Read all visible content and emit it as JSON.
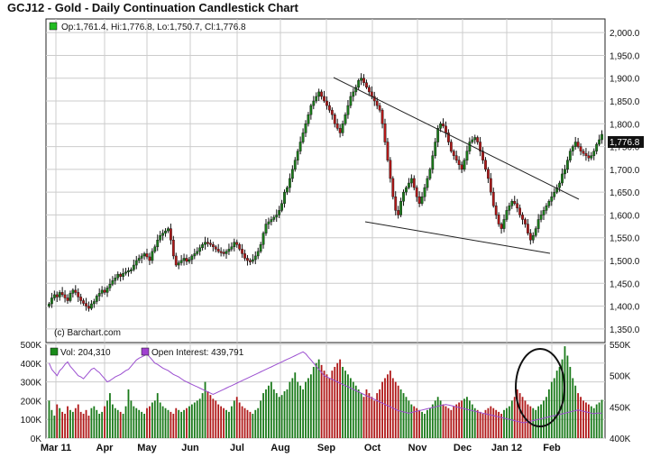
{
  "chart_data": {
    "type": "candlestick",
    "title": "GCJ12 - Gold - Daily Continuation Candlestick Chart",
    "ohlc_legend": "Op:1,761.4, Hi:1,776.8, Lo:1,750.7, Cl:1,776.8",
    "last_price_label": "1,776.8",
    "credit": "(c) Barchart.com",
    "price_axis": {
      "min": 1320,
      "max": 2030,
      "ticks": [
        "2,000.0",
        "1,950.0",
        "1,900.0",
        "1,850.0",
        "1,800.0",
        "1,750.0",
        "1,700.0",
        "1,650.0",
        "1,600.0",
        "1,550.0",
        "1,500.0",
        "1,450.0",
        "1,400.0",
        "1,350.0"
      ]
    },
    "volume_axis": {
      "min": 0,
      "max": 500000,
      "ticks": [
        "500K",
        "400K",
        "300K",
        "200K",
        "100K",
        "0K"
      ]
    },
    "open_interest_axis": {
      "min": 400000,
      "max": 550000,
      "ticks": [
        "550K",
        "500K",
        "450K",
        "400K"
      ]
    },
    "months": [
      "Mar 11",
      "Apr",
      "May",
      "Jun",
      "Jul",
      "Aug",
      "Sep",
      "Oct",
      "Nov",
      "Dec",
      "Jan 12",
      "Feb"
    ],
    "volume_legend": "Vol: 204,310",
    "open_interest_legend": "Open Interest: 439,791",
    "colors": {
      "up": "#1a7a1a",
      "down": "#b01818",
      "open_interest": "#9b4fd0",
      "volume_swatch": "#1a8a1a",
      "oi_swatch": "#a040d0",
      "last_label_bg": "#111111",
      "legend_swatch": "#22bb22"
    },
    "price_closes": [
      1405,
      1418,
      1425,
      1420,
      1430,
      1425,
      1418,
      1412,
      1428,
      1435,
      1430,
      1420,
      1412,
      1406,
      1400,
      1395,
      1405,
      1410,
      1422,
      1428,
      1435,
      1430,
      1440,
      1448,
      1456,
      1462,
      1470,
      1465,
      1472,
      1475,
      1478,
      1480,
      1490,
      1500,
      1505,
      1510,
      1515,
      1508,
      1500,
      1520,
      1530,
      1545,
      1555,
      1560,
      1565,
      1570,
      1545,
      1510,
      1490,
      1495,
      1500,
      1505,
      1498,
      1502,
      1510,
      1515,
      1520,
      1528,
      1535,
      1540,
      1538,
      1535,
      1530,
      1525,
      1520,
      1518,
      1515,
      1520,
      1525,
      1530,
      1540,
      1535,
      1525,
      1515,
      1505,
      1500,
      1498,
      1502,
      1510,
      1520,
      1535,
      1560,
      1580,
      1585,
      1590,
      1595,
      1600,
      1610,
      1625,
      1650,
      1660,
      1680,
      1700,
      1720,
      1740,
      1760,
      1780,
      1800,
      1820,
      1840,
      1850,
      1860,
      1870,
      1860,
      1850,
      1840,
      1830,
      1820,
      1800,
      1790,
      1780,
      1800,
      1820,
      1840,
      1860,
      1870,
      1880,
      1895,
      1900,
      1890,
      1880,
      1870,
      1860,
      1850,
      1840,
      1830,
      1800,
      1760,
      1720,
      1680,
      1640,
      1610,
      1600,
      1630,
      1650,
      1660,
      1670,
      1680,
      1660,
      1640,
      1625,
      1640,
      1660,
      1680,
      1700,
      1730,
      1760,
      1790,
      1800,
      1795,
      1780,
      1760,
      1740,
      1730,
      1720,
      1710,
      1700,
      1720,
      1740,
      1760,
      1765,
      1770,
      1760,
      1740,
      1720,
      1700,
      1680,
      1650,
      1620,
      1600,
      1580,
      1570,
      1590,
      1610,
      1620,
      1630,
      1625,
      1615,
      1600,
      1590,
      1580,
      1560,
      1545,
      1555,
      1570,
      1590,
      1600,
      1610,
      1620,
      1630,
      1640,
      1650,
      1660,
      1670,
      1690,
      1700,
      1720,
      1740,
      1750,
      1760,
      1750,
      1740,
      1735,
      1730,
      1725,
      1730,
      1740,
      1755,
      1765,
      1776.8
    ],
    "volume": [
      200,
      150,
      120,
      180,
      160,
      140,
      130,
      170,
      150,
      140,
      160,
      180,
      140,
      130,
      150,
      120,
      160,
      170,
      150,
      130,
      140,
      170,
      200,
      240,
      180,
      160,
      150,
      140,
      130,
      170,
      260,
      200,
      170,
      160,
      150,
      140,
      130,
      160,
      170,
      190,
      200,
      240,
      190,
      170,
      160,
      150,
      140,
      130,
      160,
      150,
      140,
      150,
      160,
      170,
      180,
      190,
      200,
      210,
      240,
      300,
      250,
      230,
      210,
      200,
      180,
      170,
      160,
      150,
      140,
      170,
      200,
      220,
      190,
      170,
      160,
      150,
      140,
      130,
      150,
      160,
      200,
      240,
      260,
      280,
      300,
      260,
      240,
      220,
      230,
      250,
      260,
      300,
      320,
      350,
      300,
      280,
      260,
      300,
      320,
      340,
      380,
      400,
      420,
      390,
      360,
      340,
      320,
      360,
      380,
      400,
      420,
      380,
      360,
      340,
      320,
      300,
      280,
      260,
      240,
      220,
      260,
      240,
      220,
      200,
      240,
      260,
      300,
      320,
      340,
      360,
      320,
      300,
      280,
      260,
      240,
      220,
      200,
      180,
      170,
      160,
      150,
      140,
      130,
      150,
      160,
      180,
      200,
      220,
      200,
      180,
      170,
      160,
      150,
      170,
      180,
      190,
      200,
      210,
      220,
      200,
      180,
      160,
      150,
      140,
      130,
      150,
      160,
      170,
      160,
      150,
      140,
      130,
      150,
      160,
      170,
      200,
      220,
      260,
      240,
      220,
      200,
      180,
      170,
      160,
      150,
      170,
      180,
      200,
      220,
      260,
      300,
      320,
      360,
      380,
      420,
      490,
      440,
      380,
      320,
      280,
      240,
      220,
      200,
      190,
      180,
      170,
      160,
      180,
      190,
      204.31
    ],
    "open_interest": [
      520,
      510,
      505,
      500,
      508,
      512,
      518,
      522,
      515,
      510,
      505,
      500,
      498,
      495,
      500,
      505,
      510,
      512,
      508,
      505,
      500,
      495,
      490,
      492,
      495,
      498,
      500,
      502,
      505,
      508,
      510,
      515,
      520,
      525,
      528,
      530,
      532,
      535,
      530,
      525,
      520,
      518,
      515,
      512,
      510,
      508,
      505,
      502,
      500,
      498,
      495,
      492,
      490,
      488,
      486,
      484,
      482,
      480,
      478,
      476,
      474,
      472,
      470,
      472,
      474,
      476,
      478,
      480,
      482,
      484,
      486,
      488,
      490,
      492,
      494,
      496,
      498,
      500,
      502,
      504,
      506,
      508,
      510,
      512,
      514,
      516,
      518,
      520,
      522,
      524,
      526,
      528,
      530,
      532,
      534,
      536,
      538,
      535,
      530,
      525,
      520,
      515,
      510,
      505,
      500,
      498,
      496,
      494,
      492,
      490,
      488,
      486,
      484,
      482,
      480,
      478,
      476,
      474,
      472,
      470,
      468,
      466,
      464,
      462,
      460,
      458,
      456,
      454,
      452,
      450,
      448,
      446,
      444,
      443,
      442,
      441,
      440,
      441,
      442,
      443,
      444,
      445,
      446,
      447,
      448,
      449,
      450,
      451,
      452,
      453,
      454,
      453,
      452,
      451,
      450,
      449,
      448,
      447,
      446,
      445,
      444,
      443,
      442,
      441,
      440,
      439,
      438,
      437,
      436,
      435,
      434,
      433,
      432,
      431,
      430,
      429,
      428,
      427,
      426,
      425,
      425,
      426,
      427,
      428,
      429,
      430,
      431,
      432,
      433,
      434,
      435,
      436,
      437,
      438,
      439,
      440,
      441,
      442,
      443,
      444,
      445,
      444,
      443,
      442,
      441,
      440,
      439,
      440,
      440,
      439.791
    ]
  }
}
